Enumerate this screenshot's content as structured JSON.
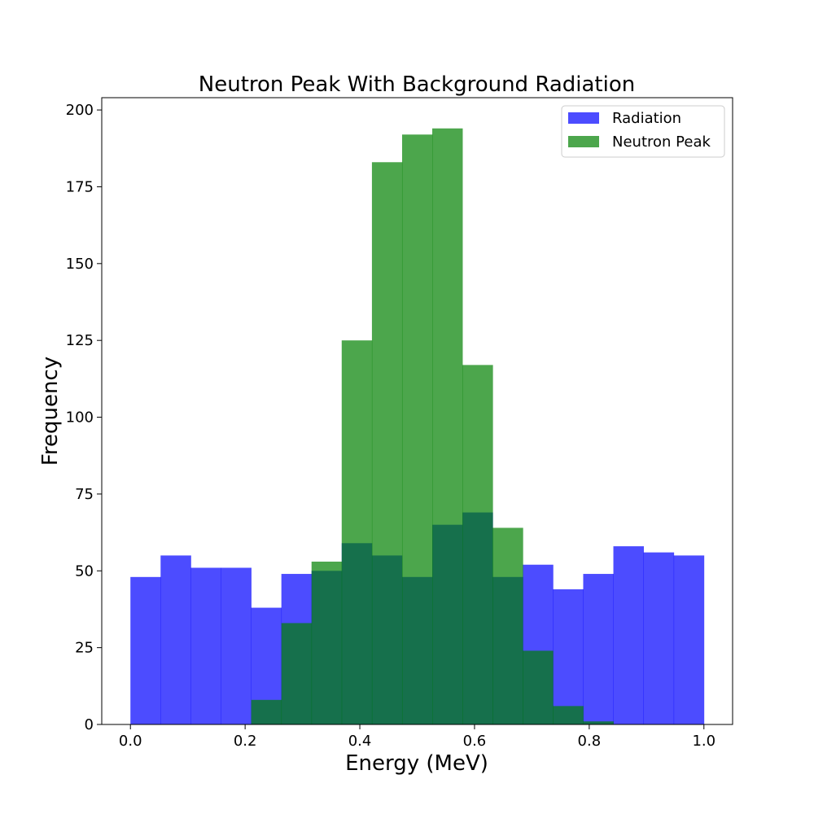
{
  "chart_data": {
    "type": "bar",
    "title": "Neutron Peak With Background Radiation",
    "xlabel": "Energy (MeV)",
    "ylabel": "Frequency",
    "xlim": [
      -0.05,
      1.05
    ],
    "ylim": [
      0,
      204
    ],
    "x_ticks": [
      "0.0",
      "0.2",
      "0.4",
      "0.6",
      "0.8",
      "1.0"
    ],
    "y_ticks": [
      "0",
      "25",
      "50",
      "75",
      "100",
      "125",
      "150",
      "175",
      "200"
    ],
    "grid": false,
    "legend_position": "top-right",
    "bin_edges": [
      0.0,
      0.0526,
      0.1053,
      0.1579,
      0.2105,
      0.2632,
      0.3158,
      0.3684,
      0.4211,
      0.4737,
      0.5263,
      0.5789,
      0.6316,
      0.6842,
      0.7368,
      0.7895,
      0.8421,
      0.8947,
      0.9474,
      1.0
    ],
    "series": [
      {
        "name": "Radiation",
        "color": "#0000ff",
        "alpha": 0.7,
        "values": [
          48,
          55,
          51,
          51,
          38,
          49,
          50,
          59,
          55,
          48,
          65,
          69,
          48,
          52,
          44,
          49,
          58,
          56,
          55
        ]
      },
      {
        "name": "Neutron Peak",
        "color": "#008000",
        "alpha": 0.7,
        "values": [
          0,
          0,
          0,
          0,
          8,
          33,
          53,
          125,
          183,
          192,
          194,
          117,
          64,
          24,
          6,
          1,
          0,
          0,
          0
        ]
      }
    ]
  }
}
